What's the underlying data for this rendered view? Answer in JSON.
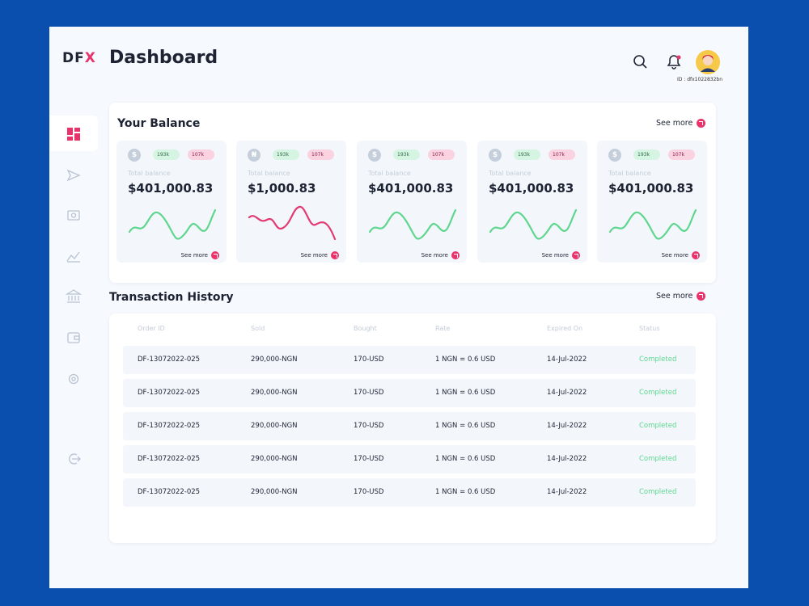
{
  "header": {
    "logo_text": "DF",
    "logo_mark": "X",
    "title": "Dashboard",
    "user_id": "ID : dfx1022832bn"
  },
  "balance": {
    "title": "Your Balance",
    "see_more": "See more",
    "cards": [
      {
        "currency": "$",
        "up": "193k",
        "down": "107k",
        "label": "Total balance",
        "amount": "$401,000.83",
        "see_more": "See more"
      },
      {
        "currency": "₦",
        "up": "193k",
        "down": "107k",
        "label": "Total balance",
        "amount": "$1,000.83",
        "see_more": "See more"
      },
      {
        "currency": "$",
        "up": "193k",
        "down": "107k",
        "label": "Total balance",
        "amount": "$401,000.83",
        "see_more": "See more"
      },
      {
        "currency": "$",
        "up": "193k",
        "down": "107k",
        "label": "Total balance",
        "amount": "$401,000.83",
        "see_more": "See more"
      },
      {
        "currency": "$",
        "up": "193k",
        "down": "107k",
        "label": "Total balance",
        "amount": "$401,000.83",
        "see_more": "See more"
      }
    ]
  },
  "transactions": {
    "title": "Transaction History",
    "see_more": "See more",
    "columns": [
      "Order ID",
      "Sold",
      "Bought",
      "Rate",
      "Expired On",
      "Status"
    ],
    "rows": [
      [
        "DF-13072022-025",
        "290,000-NGN",
        "170-USD",
        "1 NGN = 0.6 USD",
        "14-Jul-2022",
        "Completed"
      ],
      [
        "DF-13072022-025",
        "290,000-NGN",
        "170-USD",
        "1 NGN = 0.6 USD",
        "14-Jul-2022",
        "Completed"
      ],
      [
        "DF-13072022-025",
        "290,000-NGN",
        "170-USD",
        "1 NGN = 0.6 USD",
        "14-Jul-2022",
        "Completed"
      ],
      [
        "DF-13072022-025",
        "290,000-NGN",
        "170-USD",
        "1 NGN = 0.6 USD",
        "14-Jul-2022",
        "Completed"
      ],
      [
        "DF-13072022-025",
        "290,000-NGN",
        "170-USD",
        "1 NGN = 0.6 USD",
        "14-Jul-2022",
        "Completed"
      ]
    ]
  }
}
